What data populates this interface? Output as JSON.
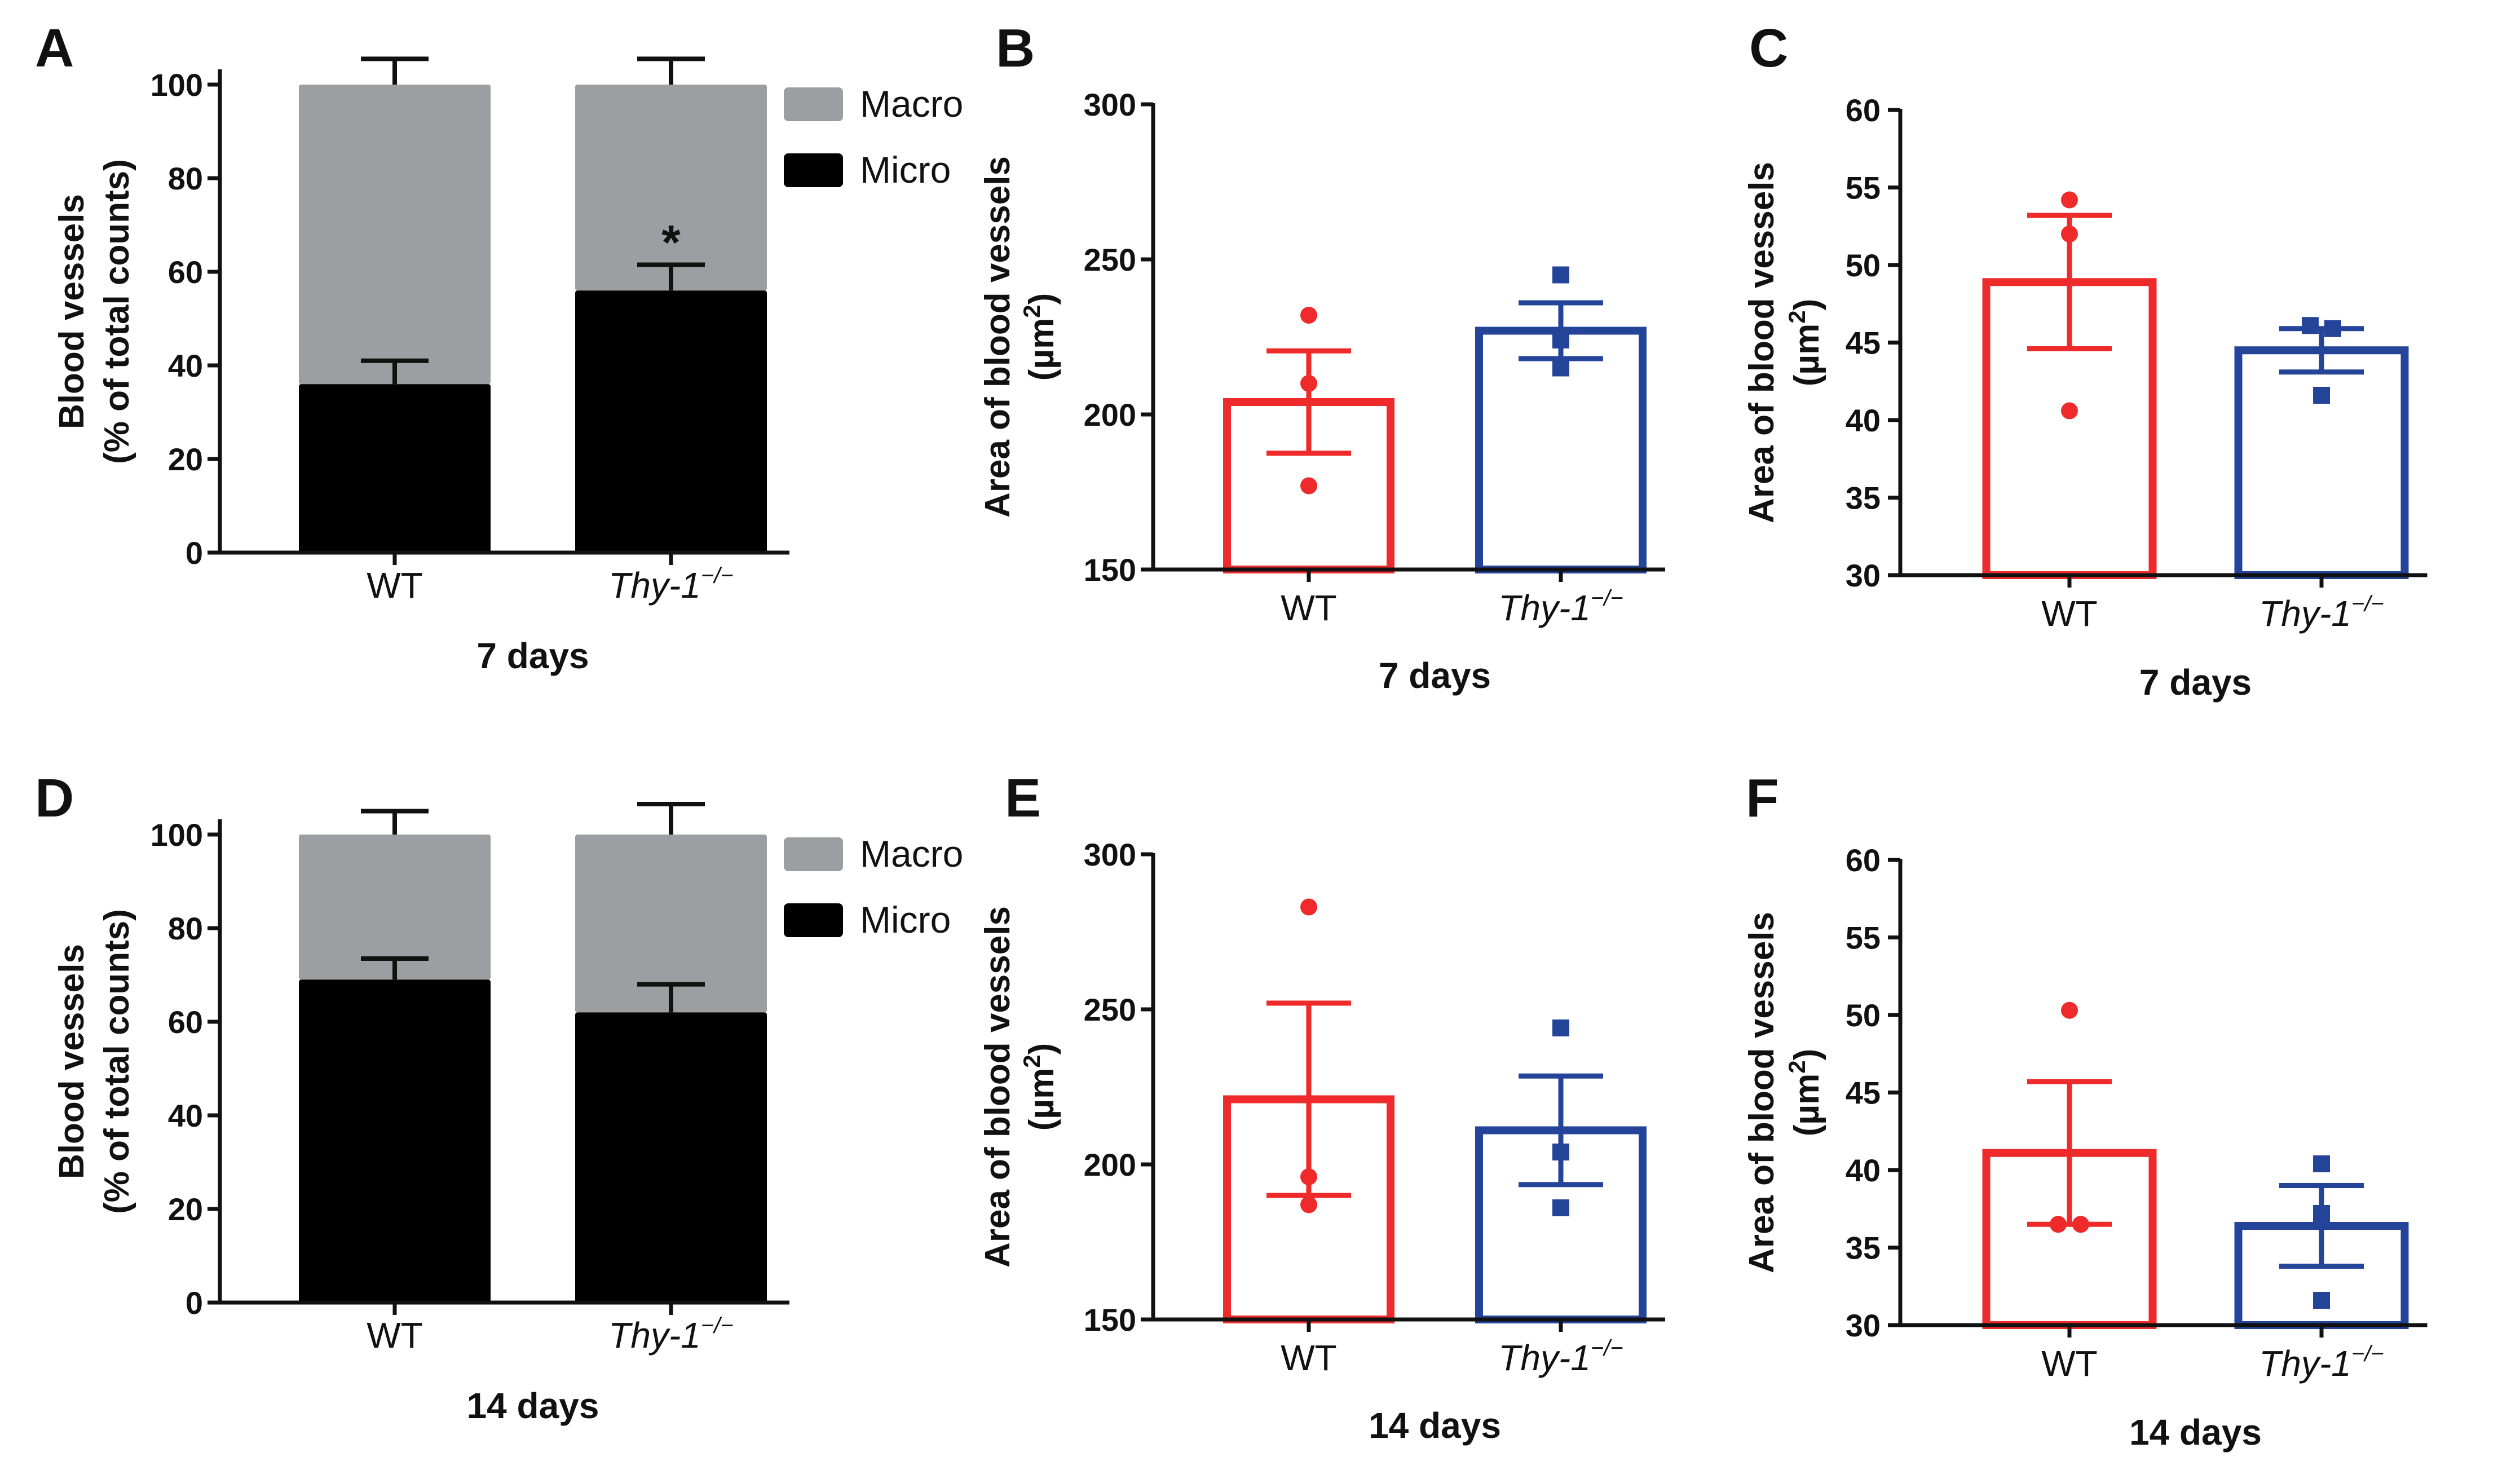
{
  "figure": {
    "panels": [
      {
        "letter": "A"
      },
      {
        "letter": "B"
      },
      {
        "letter": "C"
      },
      {
        "letter": "D"
      },
      {
        "letter": "E"
      },
      {
        "letter": "F"
      }
    ]
  },
  "colors": {
    "macro": "#9c9ea1",
    "micro": "#000000",
    "wt": "#ef2a2a",
    "ko": "#24449a",
    "axis": "#111111"
  },
  "chart_data": [
    {
      "panel": "A",
      "type": "bar",
      "stacked": true,
      "categories": [
        "WT",
        "Thy-1"
      ],
      "category_superscript": [
        "",
        "−/−"
      ],
      "series": [
        {
          "name": "Micro",
          "values": [
            36,
            56
          ],
          "errors": [
            5,
            5.5
          ]
        },
        {
          "name": "Macro",
          "values": [
            64,
            44
          ],
          "errors": [
            5.5,
            5.5
          ]
        }
      ],
      "legend": [
        "Macro",
        "Micro"
      ],
      "annotations": [
        {
          "category": "Thy-1",
          "text": "*"
        }
      ],
      "ylabel": [
        "Blood vessels",
        "(% of total counts)"
      ],
      "xlabel": "7 days",
      "ylim": [
        0,
        100
      ],
      "yticks": [
        0,
        20,
        40,
        60,
        80,
        100
      ]
    },
    {
      "panel": "B",
      "type": "bar",
      "categories": [
        "WT",
        "Thy-1"
      ],
      "category_superscript": [
        "",
        "−/−"
      ],
      "values": [
        204,
        227
      ],
      "errors": [
        16.5,
        9
      ],
      "points": [
        [
          232,
          210,
          177
        ],
        [
          245,
          224,
          215
        ]
      ],
      "ylabel": [
        "Area of blood vessels",
        "(µm",
        "2",
        ")"
      ],
      "xlabel": "7 days",
      "ylim": [
        150,
        300
      ],
      "yticks": [
        150,
        200,
        250,
        300
      ]
    },
    {
      "panel": "C",
      "type": "bar",
      "categories": [
        "WT",
        "Thy-1"
      ],
      "category_superscript": [
        "",
        "−/−"
      ],
      "values": [
        48.9,
        44.5
      ],
      "errors": [
        4.3,
        1.4
      ],
      "points": [
        [
          54.2,
          52.0,
          40.6
        ],
        [
          46.1,
          45.9,
          41.6
        ]
      ],
      "ylabel": [
        "Area of blood vessels",
        "(µm",
        "2",
        ")"
      ],
      "xlabel": "7 days",
      "ylim": [
        30,
        60
      ],
      "yticks": [
        30,
        35,
        40,
        45,
        50,
        55,
        60
      ]
    },
    {
      "panel": "D",
      "type": "bar",
      "stacked": true,
      "categories": [
        "WT",
        "Thy-1"
      ],
      "category_superscript": [
        "",
        "−/−"
      ],
      "series": [
        {
          "name": "Micro",
          "values": [
            69,
            62
          ],
          "errors": [
            4.5,
            6
          ]
        },
        {
          "name": "Macro",
          "values": [
            31,
            38
          ],
          "errors": [
            5,
            6.5
          ]
        }
      ],
      "legend": [
        "Macro",
        "Micro"
      ],
      "ylabel": [
        "Blood vessels",
        "(% of total counts)"
      ],
      "xlabel": "14 days",
      "ylim": [
        0,
        100
      ],
      "yticks": [
        0,
        20,
        40,
        60,
        80,
        100
      ]
    },
    {
      "panel": "E",
      "type": "bar",
      "categories": [
        "WT",
        "Thy-1"
      ],
      "category_superscript": [
        "",
        "−/−"
      ],
      "values": [
        221,
        211
      ],
      "errors": [
        31,
        17.5
      ],
      "points": [
        [
          283,
          196,
          187
        ],
        [
          244,
          204,
          186
        ]
      ],
      "ylabel": [
        "Area of blood vessels",
        "(µm",
        "2",
        ")"
      ],
      "xlabel": "14 days",
      "ylim": [
        150,
        300
      ],
      "yticks": [
        150,
        200,
        250,
        300
      ]
    },
    {
      "panel": "F",
      "type": "bar",
      "categories": [
        "WT",
        "Thy-1"
      ],
      "category_superscript": [
        "",
        "−/−"
      ],
      "values": [
        41.1,
        36.4
      ],
      "errors": [
        4.6,
        2.6
      ],
      "points": [
        [
          50.3,
          36.5,
          36.5
        ],
        [
          40.4,
          37.2,
          31.6
        ]
      ],
      "ylabel": [
        "Area of blood vessels",
        "(µm",
        "2",
        ")"
      ],
      "xlabel": "14 days",
      "ylim": [
        30,
        60
      ],
      "yticks": [
        30,
        35,
        40,
        45,
        50,
        55,
        60
      ]
    }
  ]
}
